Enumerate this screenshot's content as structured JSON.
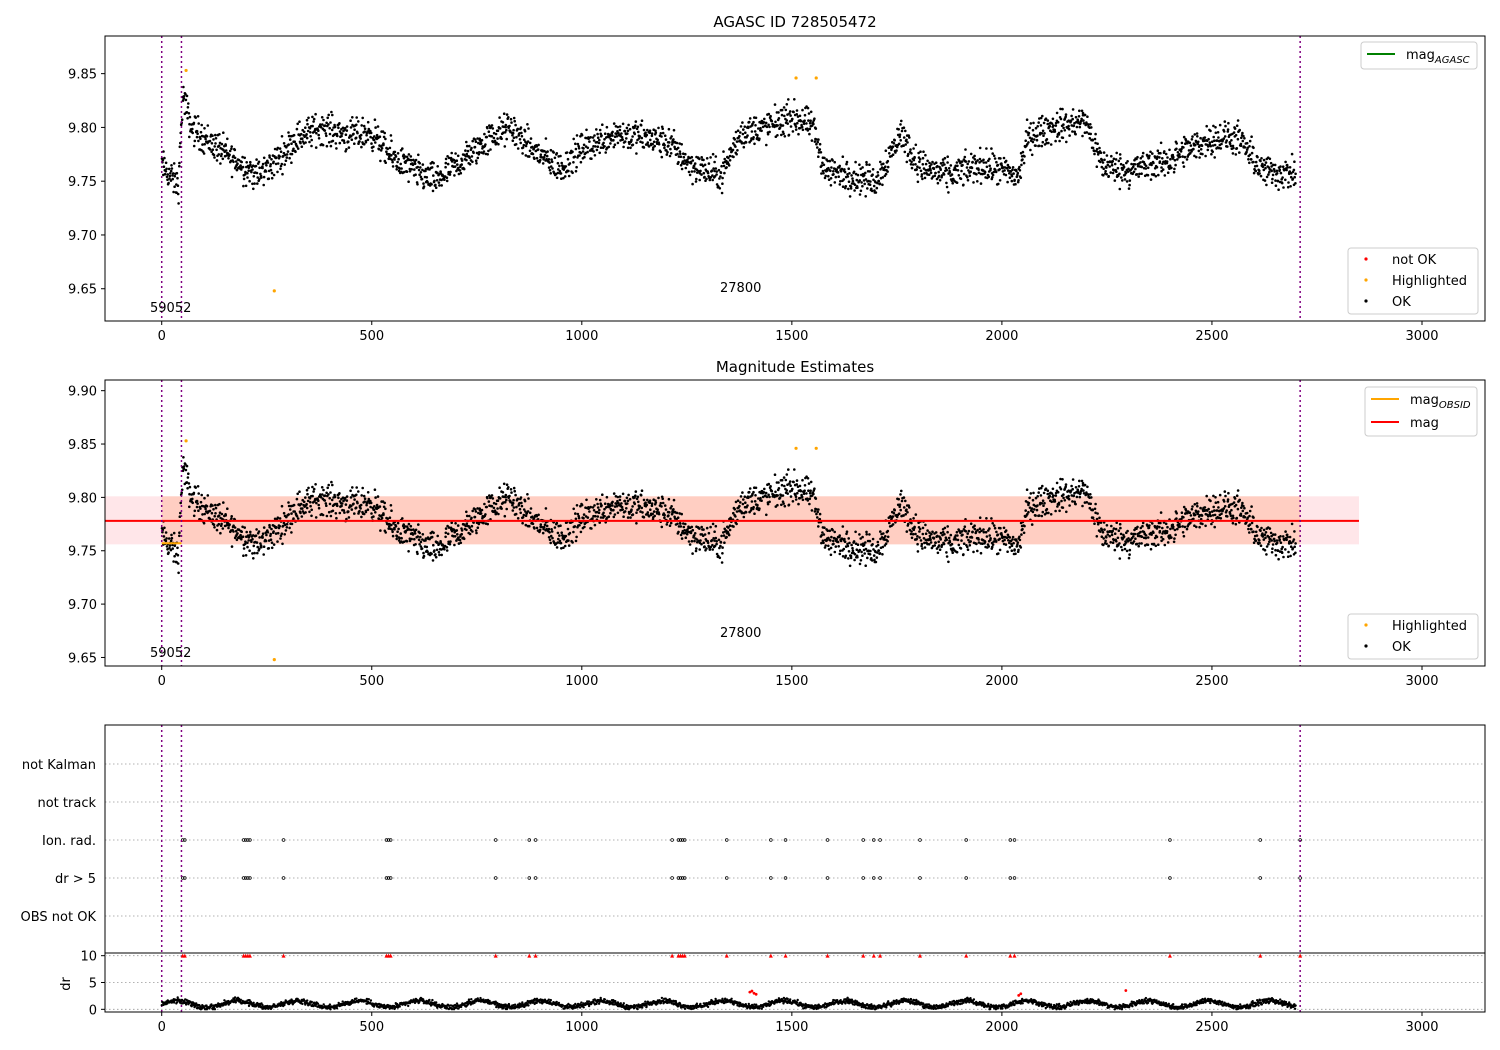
{
  "chart_data": [
    {
      "type": "scatter",
      "title": "AGASC ID 728505472",
      "xlim": [
        -135,
        3150
      ],
      "ylim": [
        9.62,
        9.885
      ],
      "x_ticks": [
        0,
        500,
        1000,
        1500,
        2000,
        2500,
        3000
      ],
      "y_ticks": [
        9.65,
        9.7,
        9.75,
        9.8,
        9.85
      ],
      "vlines": [
        0,
        47,
        2710
      ],
      "annotations": [
        {
          "text": "59052",
          "x": 20,
          "y": 9.627
        },
        {
          "text": "27800",
          "x": 1380,
          "y": 9.645
        }
      ],
      "line_legend": [
        {
          "label": "mag",
          "sub": "AGASC",
          "color": "#008000"
        }
      ],
      "marker_legend": [
        {
          "label": "not OK",
          "color": "#ff0000"
        },
        {
          "label": "Highlighted",
          "color": "#ffa500"
        },
        {
          "label": "OK",
          "color": "#000000"
        }
      ],
      "highlighted": [
        [
          58,
          9.853
        ],
        [
          268,
          9.648
        ],
        [
          1510,
          9.846
        ],
        [
          1558,
          9.846
        ]
      ]
    },
    {
      "type": "scatter",
      "title": "Magnitude Estimates",
      "xlim": [
        -135,
        3150
      ],
      "ylim": [
        9.642,
        9.91
      ],
      "x_ticks": [
        0,
        500,
        1000,
        1500,
        2000,
        2500,
        3000
      ],
      "y_ticks": [
        9.65,
        9.7,
        9.75,
        9.8,
        9.85,
        9.9
      ],
      "vlines": [
        0,
        47,
        2710
      ],
      "annotations": [
        {
          "text": "59052",
          "x": 20,
          "y": 9.652
        },
        {
          "text": "27800",
          "x": 1380,
          "y": 9.67
        }
      ],
      "mean_mag": 9.778,
      "mag_band": [
        9.756,
        9.801
      ],
      "mag_band_xrange": [
        0,
        2850
      ],
      "obsid_mag": 9.757,
      "obsid_xrange": [
        0,
        47
      ],
      "line_legend": [
        {
          "label": "mag",
          "sub": "OBSID",
          "color": "#ffa500"
        },
        {
          "label": "mag",
          "sub": "",
          "color": "#ff0000"
        }
      ],
      "marker_legend": [
        {
          "label": "Highlighted",
          "color": "#ffa500"
        },
        {
          "label": "OK",
          "color": "#000000"
        }
      ],
      "highlighted": [
        [
          58,
          9.853
        ],
        [
          268,
          9.648
        ],
        [
          1510,
          9.846
        ],
        [
          1558,
          9.846
        ]
      ]
    },
    {
      "type": "scatter",
      "title": "",
      "xlim": [
        -135,
        3150
      ],
      "categories": [
        "not Kalman",
        "not track",
        "Ion. rad.",
        "dr > 5",
        "OBS not OK"
      ],
      "flag_x": [
        50,
        55,
        195,
        200,
        205,
        210,
        290,
        535,
        540,
        545,
        795,
        875,
        890,
        1215,
        1230,
        1235,
        1240,
        1245,
        1345,
        1450,
        1485,
        1585,
        1670,
        1695,
        1710,
        1805,
        1915,
        2020,
        2030,
        2400,
        2615,
        2710
      ],
      "dr_ylim": [
        -0.5,
        10.5
      ],
      "dr_yticks": [
        0,
        5,
        10
      ],
      "dr_ylabel": "dr",
      "dr_clip_value": 10,
      "dr_outliers": [
        [
          1400,
          3.2
        ],
        [
          1405,
          3.4
        ],
        [
          1410,
          3.0
        ],
        [
          1415,
          2.8
        ],
        [
          2040,
          2.6
        ],
        [
          2045,
          2.9
        ],
        [
          2295,
          3.5
        ]
      ],
      "x_ticks": [
        0,
        500,
        1000,
        1500,
        2000,
        2500,
        3000
      ],
      "vlines": [
        0,
        47,
        2710
      ]
    }
  ]
}
